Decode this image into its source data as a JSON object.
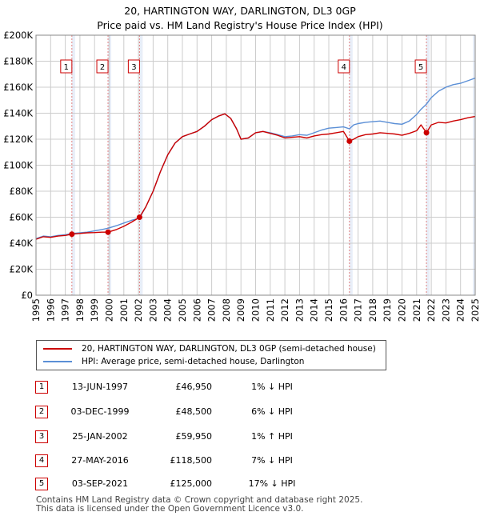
{
  "header": {
    "title_line1": "20, HARTINGTON WAY, DARLINGTON, DL3 0GP",
    "title_line2": "Price paid vs. HM Land Registry's House Price Index (HPI)"
  },
  "colors": {
    "property": "#cc0000",
    "hpi": "#5b8fd6",
    "marker_box": "#cc0000",
    "vline": "#e08080",
    "shade": "#e8eef8",
    "grid": "#cccccc"
  },
  "chart_data": {
    "type": "line",
    "x_range": [
      1995,
      2025
    ],
    "ylim": [
      0,
      200000
    ],
    "y_ticks": [
      "£0",
      "£20K",
      "£40K",
      "£60K",
      "£80K",
      "£100K",
      "£120K",
      "£140K",
      "£160K",
      "£180K",
      "£200K"
    ],
    "y_tick_values": [
      0,
      20000,
      40000,
      60000,
      80000,
      100000,
      120000,
      140000,
      160000,
      180000,
      200000
    ],
    "x_ticks": [
      "1995",
      "1996",
      "1997",
      "1998",
      "1999",
      "2000",
      "2001",
      "2002",
      "2003",
      "2004",
      "2005",
      "2006",
      "2007",
      "2008",
      "2009",
      "2010",
      "2011",
      "2012",
      "2013",
      "2014",
      "2015",
      "2016",
      "2017",
      "2018",
      "2019",
      "2020",
      "2021",
      "2022",
      "2023",
      "2024",
      "2025"
    ],
    "x_tick_values": [
      1995,
      1996,
      1997,
      1998,
      1999,
      2000,
      2001,
      2002,
      2003,
      2004,
      2005,
      2006,
      2007,
      2008,
      2009,
      2010,
      2011,
      2012,
      2013,
      2014,
      2015,
      2016,
      2017,
      2018,
      2019,
      2020,
      2021,
      2022,
      2023,
      2024,
      2025
    ],
    "grid": true,
    "series": [
      {
        "name": "20, HARTINGTON WAY, DARLINGTON, DL3 0GP (semi-detached house)",
        "color": "#cc0000",
        "x": [
          1995.0,
          1995.5,
          1996.0,
          1996.5,
          1997.0,
          1997.45,
          1998.0,
          1998.5,
          1999.0,
          1999.5,
          1999.92,
          2000.5,
          2001.0,
          2001.5,
          2002.07,
          2002.5,
          2003.0,
          2003.5,
          2004.0,
          2004.5,
          2005.0,
          2005.5,
          2006.0,
          2006.5,
          2007.0,
          2007.5,
          2007.9,
          2008.3,
          2008.7,
          2009.0,
          2009.5,
          2010.0,
          2010.5,
          2011.0,
          2011.5,
          2012.0,
          2012.5,
          2013.0,
          2013.5,
          2014.0,
          2014.5,
          2015.0,
          2015.5,
          2016.0,
          2016.41,
          2016.7,
          2017.0,
          2017.5,
          2018.0,
          2018.5,
          2019.0,
          2019.5,
          2020.0,
          2020.5,
          2021.0,
          2021.3,
          2021.67,
          2022.0,
          2022.5,
          2023.0,
          2023.5,
          2024.0,
          2024.5,
          2025.0
        ],
        "y": [
          43000,
          45000,
          44500,
          45500,
          46000,
          46950,
          47500,
          48000,
          48200,
          48500,
          48500,
          50500,
          53000,
          56000,
          59950,
          68000,
          80000,
          95000,
          108000,
          117000,
          122000,
          124000,
          126000,
          130000,
          135000,
          138000,
          139500,
          136000,
          128000,
          120000,
          121000,
          125000,
          126000,
          124500,
          123000,
          121000,
          121500,
          122000,
          121000,
          122500,
          123500,
          124000,
          125000,
          126000,
          118500,
          120000,
          122000,
          123500,
          124000,
          125000,
          124500,
          124000,
          123000,
          124500,
          126500,
          131000,
          125000,
          131000,
          133000,
          132500,
          134000,
          135000,
          136500,
          137500
        ]
      },
      {
        "name": "HPI: Average price, semi-detached house, Darlington",
        "color": "#5b8fd6",
        "x": [
          1995.0,
          1995.5,
          1996.0,
          1996.5,
          1997.0,
          1997.45,
          1998.0,
          1998.5,
          1999.0,
          1999.5,
          1999.92,
          2000.5,
          2001.0,
          2001.5,
          2002.07,
          2002.5,
          2003.0,
          2003.5,
          2004.0,
          2004.5,
          2005.0,
          2005.5,
          2006.0,
          2006.5,
          2007.0,
          2007.5,
          2007.9,
          2008.3,
          2008.7,
          2009.0,
          2009.5,
          2010.0,
          2010.5,
          2011.0,
          2011.5,
          2012.0,
          2012.5,
          2013.0,
          2013.5,
          2014.0,
          2014.5,
          2015.0,
          2015.5,
          2016.0,
          2016.41,
          2016.7,
          2017.0,
          2017.5,
          2018.0,
          2018.5,
          2019.0,
          2019.5,
          2020.0,
          2020.5,
          2021.0,
          2021.3,
          2021.67,
          2022.0,
          2022.5,
          2023.0,
          2023.5,
          2024.0,
          2024.5,
          2025.0
        ],
        "y": [
          43500,
          45500,
          45000,
          46000,
          46500,
          47400,
          48000,
          48500,
          49500,
          50500,
          51500,
          53500,
          55500,
          57500,
          59400,
          68000,
          80000,
          95000,
          108000,
          117000,
          122000,
          124000,
          126000,
          130000,
          135000,
          138000,
          139500,
          136000,
          128000,
          120000,
          121000,
          125000,
          126000,
          125000,
          123500,
          122000,
          122500,
          123500,
          123000,
          125000,
          127000,
          128500,
          129000,
          129500,
          128000,
          131000,
          132000,
          133000,
          133500,
          134000,
          133000,
          132000,
          131500,
          134000,
          139000,
          143000,
          147000,
          152000,
          157000,
          160000,
          162000,
          163000,
          165000,
          167000
        ]
      }
    ],
    "sales": [
      {
        "id": "1",
        "x": 1997.45,
        "y": 46950
      },
      {
        "id": "2",
        "x": 1999.92,
        "y": 48500
      },
      {
        "id": "3",
        "x": 2002.07,
        "y": 59950
      },
      {
        "id": "4",
        "x": 2016.41,
        "y": 118500
      },
      {
        "id": "5",
        "x": 2021.67,
        "y": 125000
      }
    ]
  },
  "legend": {
    "property_label": "20, HARTINGTON WAY, DARLINGTON, DL3 0GP (semi-detached house)",
    "hpi_label": "HPI: Average price, semi-detached house, Darlington"
  },
  "sales_table": [
    {
      "num": "1",
      "date": "13-JUN-1997",
      "price": "£46,950",
      "hpi": "1% ↓ HPI"
    },
    {
      "num": "2",
      "date": "03-DEC-1999",
      "price": "£48,500",
      "hpi": "6% ↓ HPI"
    },
    {
      "num": "3",
      "date": "25-JAN-2002",
      "price": "£59,950",
      "hpi": "1% ↑ HPI"
    },
    {
      "num": "4",
      "date": "27-MAY-2016",
      "price": "£118,500",
      "hpi": "7% ↓ HPI"
    },
    {
      "num": "5",
      "date": "03-SEP-2021",
      "price": "£125,000",
      "hpi": "17% ↓ HPI"
    }
  ],
  "footer": {
    "line1": "Contains HM Land Registry data © Crown copyright and database right 2025.",
    "line2": "This data is licensed under the Open Government Licence v3.0."
  }
}
